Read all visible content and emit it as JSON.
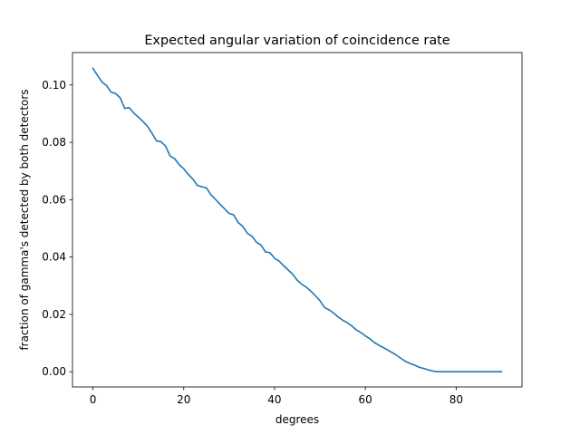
{
  "chart_data": {
    "type": "line",
    "title": "Expected angular variation of coincidence rate",
    "xlabel": "degrees",
    "ylabel": "fraction of gamma's detected by both detectors",
    "xlim": [
      -4.5,
      94.5
    ],
    "ylim": [
      -0.0053,
      0.1113
    ],
    "xticks": [
      0,
      20,
      40,
      60,
      80
    ],
    "xtick_labels": [
      "0",
      "20",
      "40",
      "60",
      "80"
    ],
    "yticks": [
      0.0,
      0.02,
      0.04,
      0.06,
      0.08,
      0.1
    ],
    "ytick_labels": [
      "0.00",
      "0.02",
      "0.04",
      "0.06",
      "0.08",
      "0.10"
    ],
    "grid": false,
    "series": [
      {
        "color": "#1f77b4",
        "x": [
          0,
          1,
          2,
          3,
          4,
          5,
          6,
          7,
          8,
          9,
          10,
          11,
          12,
          13,
          14,
          15,
          16,
          17,
          18,
          19,
          20,
          21,
          22,
          23,
          24,
          25,
          26,
          27,
          28,
          29,
          30,
          31,
          32,
          33,
          34,
          35,
          36,
          37,
          38,
          39,
          40,
          41,
          42,
          43,
          44,
          45,
          46,
          47,
          48,
          49,
          50,
          51,
          52,
          53,
          54,
          55,
          56,
          57,
          58,
          59,
          60,
          61,
          62,
          63,
          64,
          65,
          66,
          67,
          68,
          69,
          70,
          71,
          72,
          73,
          74,
          75,
          76,
          77,
          78,
          79,
          80,
          81,
          82,
          83,
          84,
          85,
          86,
          87,
          88,
          89,
          90
        ],
        "y": [
          0.1058,
          0.1033,
          0.101,
          0.0998,
          0.0975,
          0.097,
          0.0955,
          0.0918,
          0.0921,
          0.0902,
          0.0888,
          0.0873,
          0.0856,
          0.0832,
          0.0805,
          0.0802,
          0.0787,
          0.0752,
          0.0743,
          0.0722,
          0.0708,
          0.0688,
          0.0672,
          0.065,
          0.0645,
          0.0641,
          0.0617,
          0.0601,
          0.0584,
          0.0568,
          0.0552,
          0.0547,
          0.052,
          0.0507,
          0.0483,
          0.0473,
          0.0452,
          0.0442,
          0.0418,
          0.0415,
          0.0396,
          0.0386,
          0.037,
          0.0355,
          0.034,
          0.0319,
          0.0305,
          0.0295,
          0.0281,
          0.0265,
          0.0248,
          0.0224,
          0.0216,
          0.0205,
          0.0191,
          0.018,
          0.0171,
          0.016,
          0.0146,
          0.0137,
          0.0125,
          0.0115,
          0.0102,
          0.0092,
          0.0084,
          0.0075,
          0.0066,
          0.0056,
          0.0045,
          0.0035,
          0.0028,
          0.0022,
          0.0015,
          0.0011,
          0.0006,
          0.0002,
          0.0,
          0.0,
          0.0,
          0.0,
          0.0,
          0.0,
          0.0,
          0.0,
          0.0,
          0.0,
          0.0,
          0.0,
          0.0,
          0.0,
          0.0
        ]
      }
    ]
  }
}
